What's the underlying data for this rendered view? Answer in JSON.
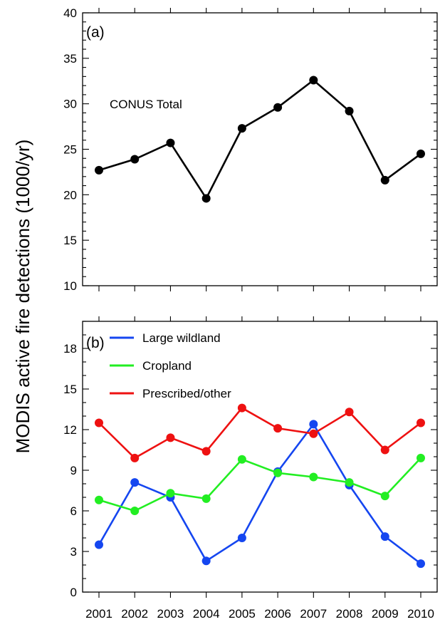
{
  "figure": {
    "ylabel": "MODIS active fire detections (1000/yr)"
  },
  "chart_data": [
    {
      "type": "line",
      "panel_label": "(a)",
      "annotation": "CONUS Total",
      "categories": [
        "2001",
        "2002",
        "2003",
        "2004",
        "2005",
        "2006",
        "2007",
        "2008",
        "2009",
        "2010"
      ],
      "series": [
        {
          "color": "#000000",
          "values": [
            22.7,
            23.9,
            25.7,
            19.6,
            27.3,
            29.6,
            32.6,
            29.2,
            21.6,
            24.5
          ]
        }
      ],
      "ylim": [
        10,
        40
      ],
      "yticks": [
        10,
        15,
        20,
        25,
        30,
        35,
        40
      ],
      "show_xtick_labels": false,
      "grid": false
    },
    {
      "type": "line",
      "panel_label": "(b)",
      "categories": [
        "2001",
        "2002",
        "2003",
        "2004",
        "2005",
        "2006",
        "2007",
        "2008",
        "2009",
        "2010"
      ],
      "series": [
        {
          "name": "Large wildland",
          "color": "#1546f0",
          "values": [
            3.5,
            8.1,
            7.0,
            2.3,
            4.0,
            8.9,
            12.4,
            7.9,
            4.1,
            2.1
          ]
        },
        {
          "name": "Cropland",
          "color": "#22ee22",
          "values": [
            6.8,
            6.0,
            7.3,
            6.9,
            9.8,
            8.8,
            8.5,
            8.1,
            7.1,
            9.9
          ]
        },
        {
          "name": "Prescribed/other",
          "color": "#ee1111",
          "values": [
            12.5,
            9.9,
            11.4,
            10.4,
            13.6,
            12.1,
            11.7,
            13.3,
            10.5,
            12.5
          ]
        }
      ],
      "ylim": [
        0,
        20
      ],
      "yticks": [
        0,
        3,
        6,
        9,
        12,
        15,
        18
      ],
      "legend": "top-left",
      "grid": false
    }
  ]
}
